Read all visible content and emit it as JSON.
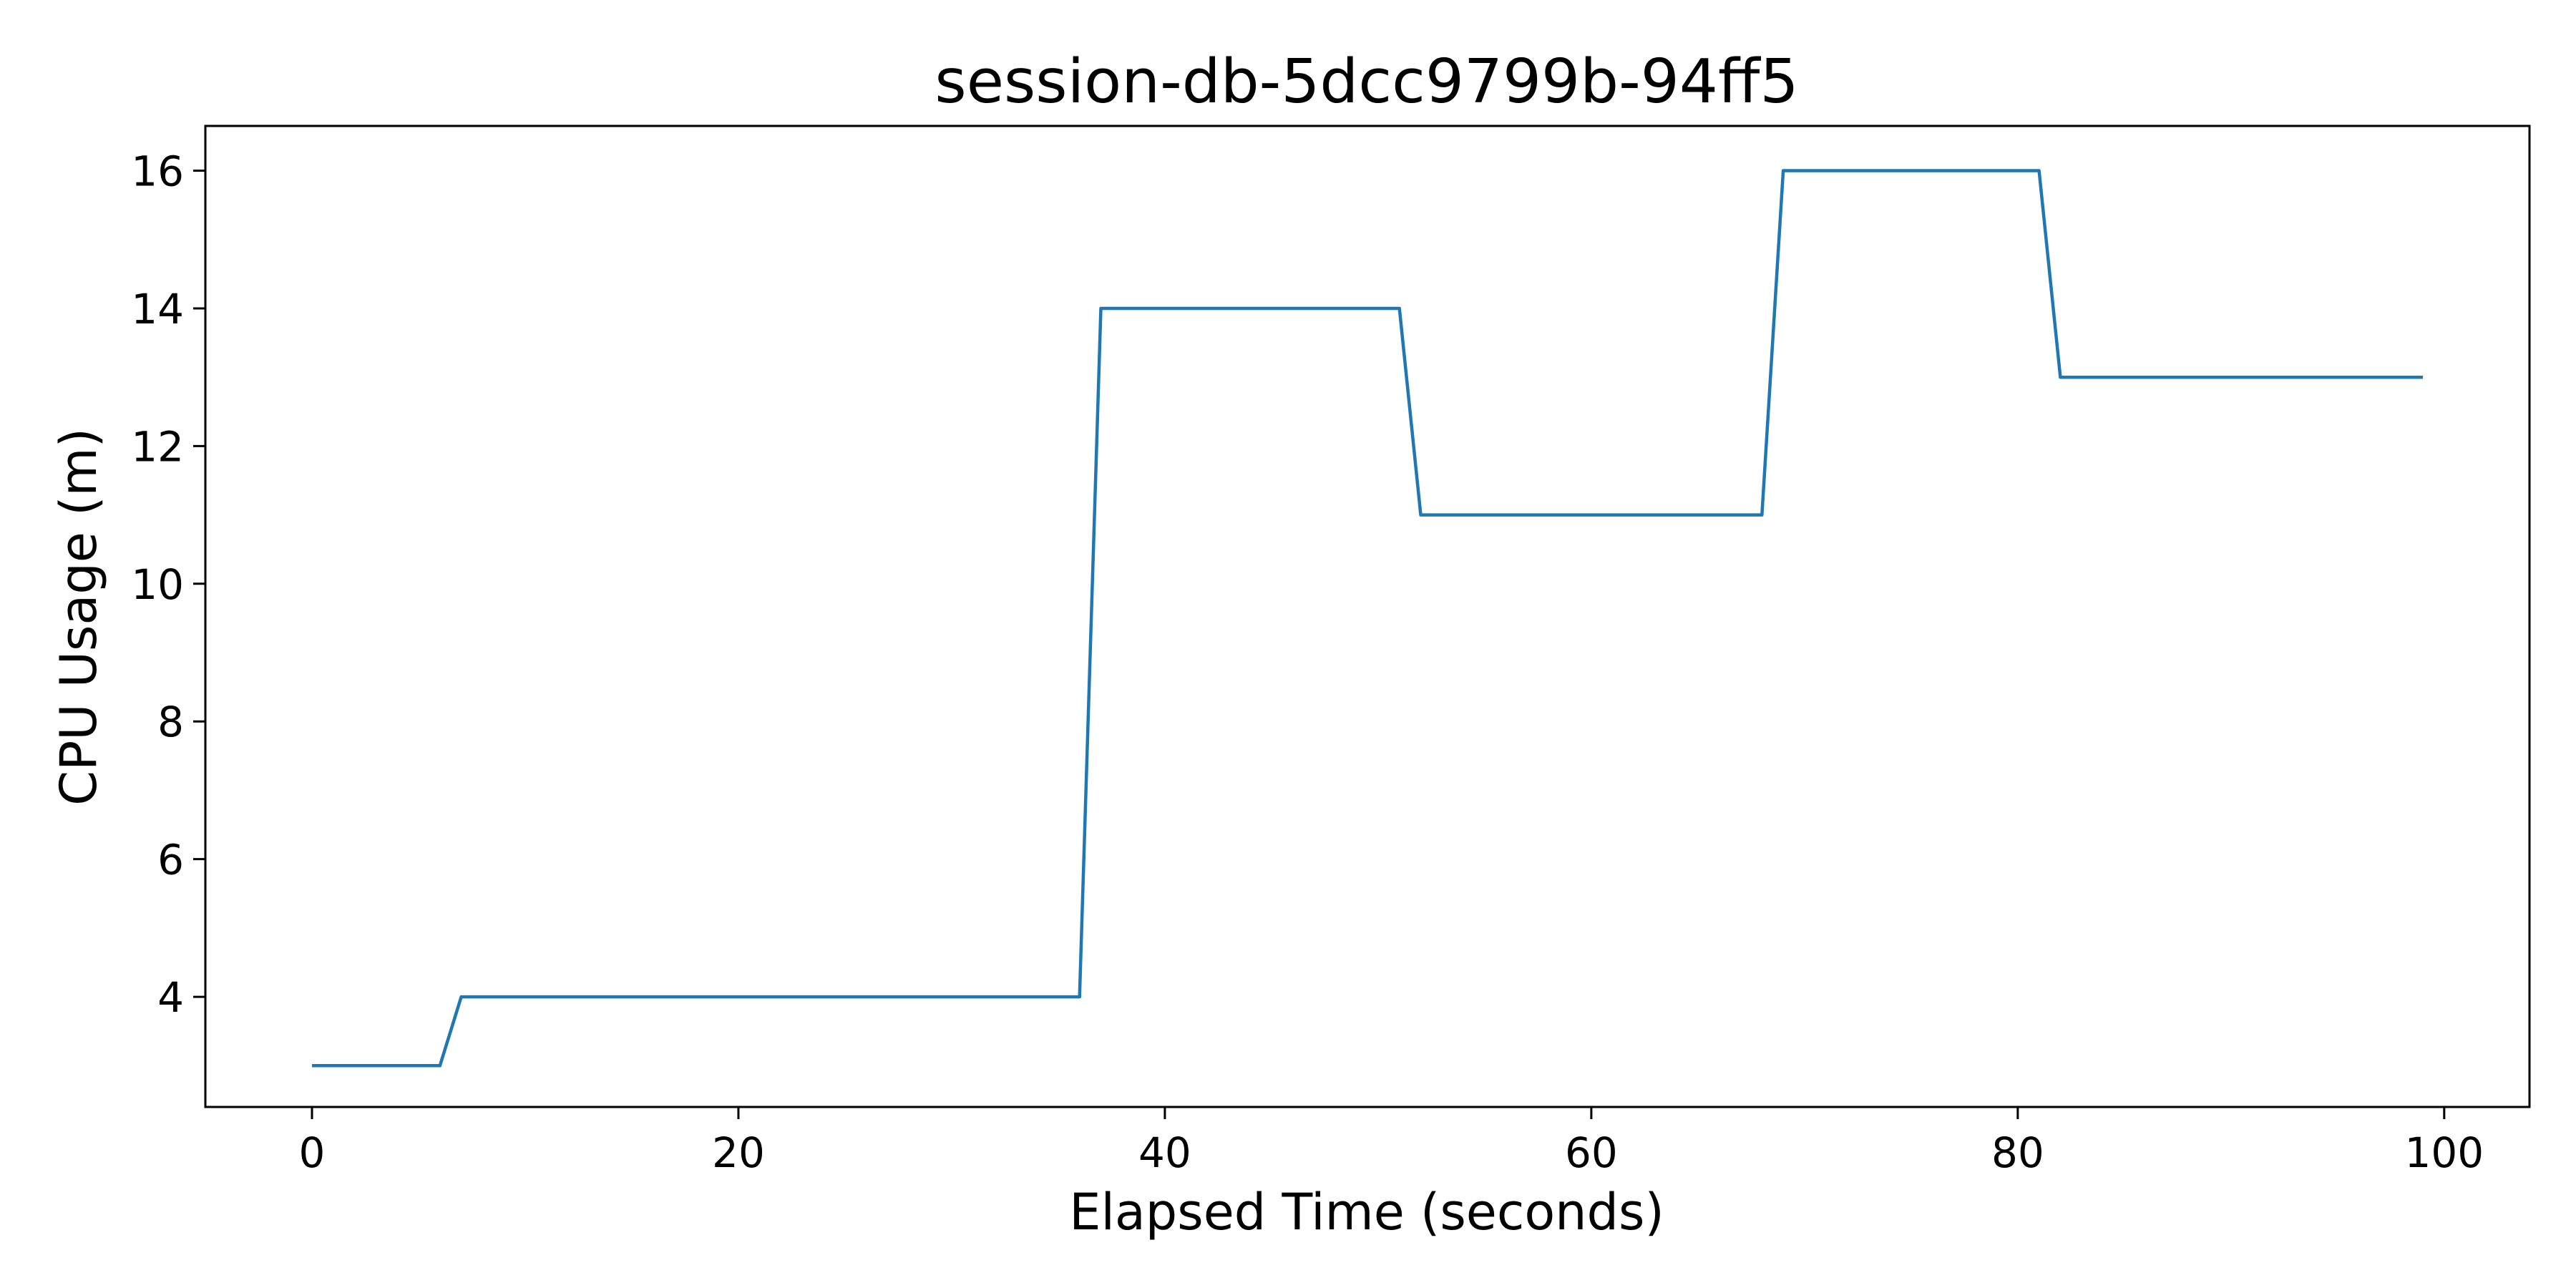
{
  "colors": {
    "series": "#1f77b4",
    "axis": "#000000",
    "background": "#ffffff"
  },
  "chart_data": {
    "type": "line",
    "title": "session-db-5dcc9799b-94ff5",
    "xlabel": "Elapsed Time (seconds)",
    "ylabel": "CPU Usage (m)",
    "xlim": [
      -5,
      104
    ],
    "ylim": [
      2.4,
      16.65
    ],
    "xticks": [
      0,
      20,
      40,
      60,
      80,
      100
    ],
    "yticks": [
      4,
      6,
      8,
      10,
      12,
      14,
      16
    ],
    "grid": false,
    "series": [
      {
        "x": [
          0,
          1,
          2,
          3,
          4,
          5,
          6,
          7,
          8,
          9,
          10,
          11,
          12,
          13,
          14,
          15,
          16,
          17,
          18,
          19,
          20,
          21,
          22,
          23,
          24,
          25,
          26,
          27,
          28,
          29,
          30,
          31,
          32,
          33,
          34,
          35,
          36,
          37,
          38,
          39,
          40,
          41,
          42,
          43,
          44,
          45,
          46,
          47,
          48,
          49,
          50,
          51,
          52,
          53,
          54,
          55,
          56,
          57,
          58,
          59,
          60,
          61,
          62,
          63,
          64,
          65,
          66,
          67,
          68,
          69,
          70,
          71,
          72,
          73,
          74,
          75,
          76,
          77,
          78,
          79,
          80,
          81,
          82,
          83,
          84,
          85,
          86,
          87,
          88,
          89,
          90,
          91,
          92,
          93,
          94,
          95,
          96,
          97,
          98,
          99
        ],
        "values": [
          3,
          3,
          3,
          3,
          3,
          3,
          3,
          4,
          4,
          4,
          4,
          4,
          4,
          4,
          4,
          4,
          4,
          4,
          4,
          4,
          4,
          4,
          4,
          4,
          4,
          4,
          4,
          4,
          4,
          4,
          4,
          4,
          4,
          4,
          4,
          4,
          4,
          14,
          14,
          14,
          14,
          14,
          14,
          14,
          14,
          14,
          14,
          14,
          14,
          14,
          14,
          14,
          11,
          11,
          11,
          11,
          11,
          11,
          11,
          11,
          11,
          11,
          11,
          11,
          11,
          11,
          11,
          11,
          11,
          16,
          16,
          16,
          16,
          16,
          16,
          16,
          16,
          16,
          16,
          16,
          16,
          16,
          13,
          13,
          13,
          13,
          13,
          13,
          13,
          13,
          13,
          13,
          13,
          13,
          13,
          13,
          13,
          13,
          13,
          13
        ]
      }
    ]
  }
}
